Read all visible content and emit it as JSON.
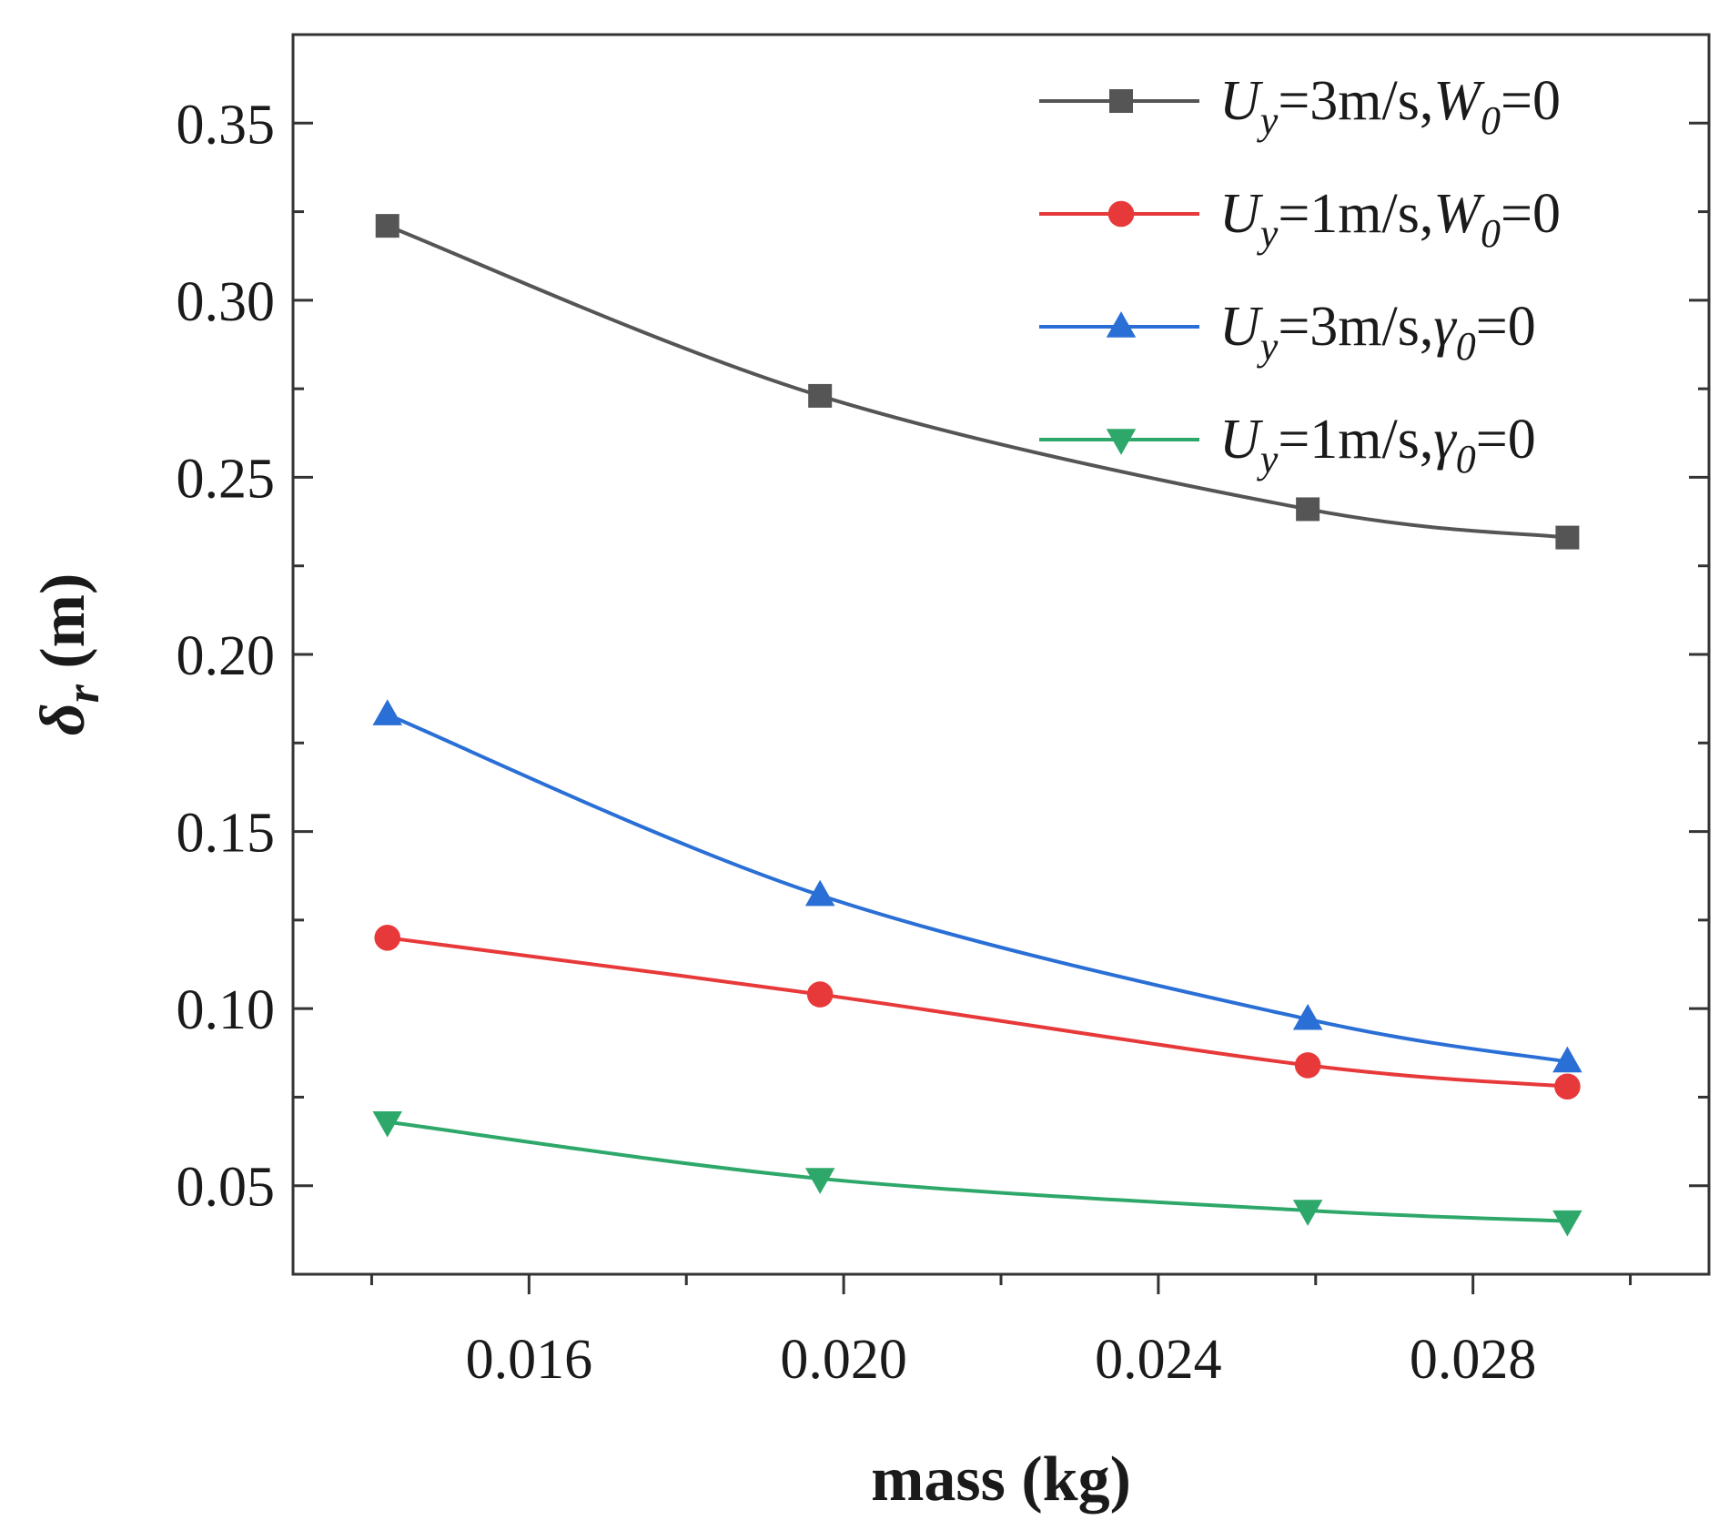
{
  "chart_data": {
    "type": "line",
    "title": "",
    "xlabel": "mass (kg)",
    "ylabel": {
      "symbol": "δ",
      "subscript": "r",
      "unit": "(m)"
    },
    "xlim": [
      0.013,
      0.031
    ],
    "ylim": [
      0.025,
      0.375
    ],
    "x_ticks": [
      {
        "value": 0.016,
        "label": "0.016"
      },
      {
        "value": 0.02,
        "label": "0.020"
      },
      {
        "value": 0.024,
        "label": "0.024"
      },
      {
        "value": 0.028,
        "label": "0.028"
      }
    ],
    "x_minor_ticks": [
      0.014,
      0.018,
      0.022,
      0.026,
      0.03
    ],
    "y_ticks": [
      {
        "value": 0.05,
        "label": "0.05"
      },
      {
        "value": 0.1,
        "label": "0.10"
      },
      {
        "value": 0.15,
        "label": "0.15"
      },
      {
        "value": 0.2,
        "label": "0.20"
      },
      {
        "value": 0.25,
        "label": "0.25"
      },
      {
        "value": 0.3,
        "label": "0.30"
      },
      {
        "value": 0.35,
        "label": "0.35"
      }
    ],
    "y_minor_ticks": [
      0.075,
      0.125,
      0.175,
      0.225,
      0.275,
      0.325
    ],
    "grid": false,
    "legend_position": "top-right",
    "x": [
      0.0142,
      0.0197,
      0.0259,
      0.0292
    ],
    "series": [
      {
        "name": "Uy=3m/s,W0=0",
        "legend": {
          "sym": "U",
          "sub": "y",
          "rest1": "=3m/s,",
          "sym2": "W",
          "sub2": "0",
          "rest2": "=0"
        },
        "color": "#555555",
        "marker": "square",
        "values": [
          0.321,
          0.273,
          0.241,
          0.233
        ]
      },
      {
        "name": "Uy=1m/s,W0=0",
        "legend": {
          "sym": "U",
          "sub": "y",
          "rest1": "=1m/s,",
          "sym2": "W",
          "sub2": "0",
          "rest2": "=0"
        },
        "color": "#e8393a",
        "marker": "circle",
        "values": [
          0.12,
          0.104,
          0.084,
          0.078
        ]
      },
      {
        "name": "Uy=3m/s,γ0=0",
        "legend": {
          "sym": "U",
          "sub": "y",
          "rest1": "=3m/s,",
          "sym2": "γ",
          "sub2": "0",
          "rest2": "=0"
        },
        "color": "#2a6fd6",
        "marker": "triangle-up",
        "values": [
          0.183,
          0.132,
          0.097,
          0.085
        ]
      },
      {
        "name": "Uy=1m/s,γ0=0",
        "legend": {
          "sym": "U",
          "sub": "y",
          "rest1": "=1m/s,",
          "sym2": "γ",
          "sub2": "0",
          "rest2": "=0"
        },
        "color": "#2ea86a",
        "marker": "triangle-down",
        "values": [
          0.068,
          0.052,
          0.043,
          0.04
        ]
      }
    ]
  }
}
